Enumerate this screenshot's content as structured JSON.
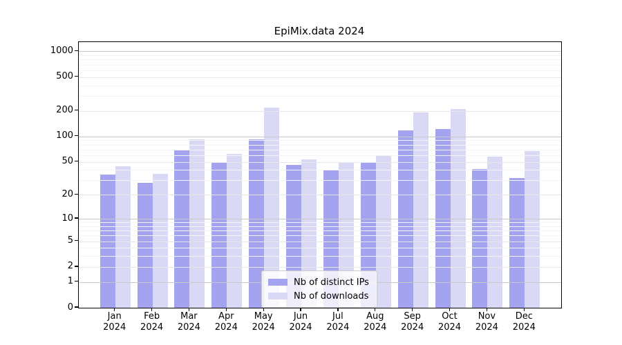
{
  "title": "EpiMix.data 2024",
  "chart_data": {
    "type": "bar",
    "title": "EpiMix.data 2024",
    "categories": [
      "Jan 2024",
      "Feb 2024",
      "Mar 2024",
      "Apr 2024",
      "May 2024",
      "Jun 2024",
      "Jul 2024",
      "Aug 2024",
      "Sep 2024",
      "Oct 2024",
      "Nov 2024",
      "Dec 2024"
    ],
    "series": [
      {
        "name": "Nb of distinct IPs",
        "color": "#a3a3ef",
        "values": [
          35,
          28,
          70,
          50,
          92,
          46,
          40,
          50,
          118,
          123,
          41,
          32
        ]
      },
      {
        "name": "Nb of downloads",
        "color": "#d9d9f6",
        "values": [
          44,
          36,
          92,
          62,
          220,
          53,
          49,
          59,
          193,
          210,
          58,
          67
        ]
      }
    ],
    "yscale": "log1p",
    "yticks": [
      1000,
      500,
      200,
      100,
      50,
      20,
      10,
      5,
      2,
      1,
      0
    ],
    "ylim": [
      0,
      1283
    ],
    "grid": true,
    "legend_position": "lower center",
    "colors": {
      "major_grid": "#c8c8c8",
      "labeled_grid": "#e7e7e7",
      "minor_grid": "#f4f4f4"
    }
  }
}
